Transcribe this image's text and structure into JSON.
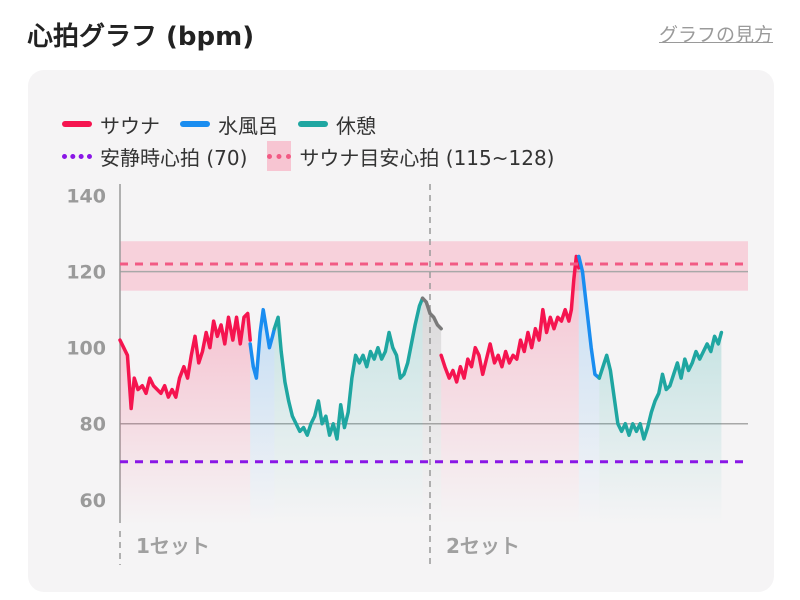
{
  "header": {
    "title": "心拍グラフ (bpm)",
    "help_link": "グラフの見方"
  },
  "legend": {
    "sauna": "サウナ",
    "cold_bath": "水風呂",
    "rest": "休憩",
    "resting_hr": "安静時心拍 (70)",
    "sauna_target": "サウナ目安心拍 (115~128)"
  },
  "colors": {
    "sauna": "#f5144f",
    "cold_bath": "#1a8df0",
    "rest": "#1fa6a1",
    "transition": "#7a7a7a",
    "resting_hr": "#8a16e6",
    "target_line": "#f25a84",
    "target_band": "#f7c5d2"
  },
  "chart_data": {
    "type": "line",
    "ylim": [
      56,
      142
    ],
    "y_ticks": [
      60,
      80,
      100,
      120,
      140
    ],
    "y_ticks_labels": [
      "60",
      "80",
      "100",
      "120",
      "140"
    ],
    "x_range": [
      0,
      100
    ],
    "set_labels": [
      "1セット",
      "2セット"
    ],
    "set_dividers": [
      0,
      50
    ],
    "reference_lines": {
      "resting_hr": 70,
      "target_low": 115,
      "target_high": 128,
      "target_line": 122
    },
    "gridlines": [
      80,
      120
    ],
    "series": [
      {
        "name": "サウナ",
        "segments": [
          [
            [
              0,
              102
            ],
            [
              0.6,
              100
            ],
            [
              1.2,
              98
            ],
            [
              1.8,
              84
            ],
            [
              2.3,
              92
            ],
            [
              2.9,
              89
            ],
            [
              3.6,
              90
            ],
            [
              4.2,
              88
            ],
            [
              4.8,
              92
            ],
            [
              5.4,
              90
            ],
            [
              6.0,
              89
            ],
            [
              6.6,
              88
            ],
            [
              7.2,
              90
            ],
            [
              7.8,
              87
            ],
            [
              8.4,
              89
            ],
            [
              9.0,
              87
            ],
            [
              9.6,
              92
            ],
            [
              10.3,
              95
            ],
            [
              10.9,
              92
            ],
            [
              11.5,
              98
            ],
            [
              12.1,
              103
            ],
            [
              12.7,
              96
            ],
            [
              13.3,
              99
            ],
            [
              13.9,
              104
            ],
            [
              14.5,
              100
            ],
            [
              15.1,
              107
            ],
            [
              15.7,
              103
            ],
            [
              16.3,
              106
            ],
            [
              16.9,
              101
            ],
            [
              17.5,
              108
            ],
            [
              18.2,
              102
            ],
            [
              18.8,
              108
            ],
            [
              19.4,
              101
            ],
            [
              20.0,
              108
            ],
            [
              20.6,
              109
            ],
            [
              21.0,
              102
            ]
          ],
          [
            [
              51.8,
              98
            ],
            [
              52.4,
              95
            ],
            [
              53.1,
              92
            ],
            [
              53.7,
              94
            ],
            [
              54.3,
              91
            ],
            [
              54.9,
              95
            ],
            [
              55.5,
              92
            ],
            [
              56.1,
              97
            ],
            [
              56.7,
              95
            ],
            [
              57.3,
              100
            ],
            [
              57.9,
              98
            ],
            [
              58.5,
              93
            ],
            [
              59.1,
              97
            ],
            [
              59.7,
              101
            ],
            [
              60.4,
              96
            ],
            [
              61.0,
              98
            ],
            [
              61.6,
              95
            ],
            [
              62.2,
              99
            ],
            [
              62.8,
              96
            ],
            [
              63.4,
              98
            ],
            [
              64.0,
              97
            ],
            [
              64.6,
              102
            ],
            [
              65.2,
              99
            ],
            [
              65.8,
              104
            ],
            [
              66.4,
              100
            ],
            [
              67.0,
              105
            ],
            [
              67.6,
              102
            ],
            [
              68.2,
              110
            ],
            [
              68.8,
              104
            ],
            [
              69.4,
              108
            ],
            [
              70.0,
              105
            ],
            [
              70.6,
              108
            ],
            [
              71.2,
              107
            ],
            [
              71.8,
              110
            ],
            [
              72.4,
              107
            ],
            [
              72.8,
              110
            ],
            [
              73.2,
              118
            ],
            [
              73.6,
              124
            ],
            [
              74.0,
              121
            ]
          ]
        ]
      },
      {
        "name": "水風呂",
        "segments": [
          [
            [
              21.0,
              101
            ],
            [
              21.5,
              95
            ],
            [
              22.0,
              92
            ],
            [
              22.6,
              104
            ],
            [
              23.1,
              110
            ],
            [
              23.6,
              105
            ],
            [
              24.1,
              100
            ],
            [
              24.6,
              103
            ],
            [
              24.9,
              105
            ]
          ],
          [
            [
              74.0,
              124
            ],
            [
              74.6,
              120
            ],
            [
              75.3,
              110
            ],
            [
              76.0,
              100
            ],
            [
              76.6,
              93
            ],
            [
              77.3,
              92
            ]
          ]
        ]
      },
      {
        "name": "休憩",
        "segments": [
          [
            [
              24.9,
              105
            ],
            [
              25.5,
              108
            ],
            [
              26.0,
              99
            ],
            [
              26.6,
              91
            ],
            [
              27.2,
              86
            ],
            [
              27.8,
              82
            ],
            [
              28.4,
              80
            ],
            [
              29.0,
              78
            ],
            [
              29.6,
              79
            ],
            [
              30.2,
              77
            ],
            [
              30.8,
              80
            ],
            [
              31.4,
              82
            ],
            [
              32.0,
              86
            ],
            [
              32.6,
              80
            ],
            [
              33.2,
              82
            ],
            [
              33.8,
              77
            ],
            [
              34.4,
              80
            ],
            [
              35.0,
              76
            ],
            [
              35.6,
              85
            ],
            [
              36.2,
              79
            ],
            [
              36.8,
              83
            ],
            [
              37.4,
              92
            ],
            [
              38.0,
              98
            ],
            [
              38.6,
              96
            ],
            [
              39.2,
              98
            ],
            [
              39.8,
              95
            ],
            [
              40.4,
              99
            ],
            [
              41.0,
              97
            ],
            [
              41.6,
              100
            ],
            [
              42.2,
              97
            ],
            [
              42.8,
              99
            ],
            [
              43.4,
              104
            ],
            [
              44.0,
              100
            ],
            [
              44.6,
              98
            ],
            [
              45.2,
              92
            ],
            [
              45.8,
              93
            ],
            [
              46.4,
              96
            ],
            [
              47.0,
              101
            ],
            [
              47.6,
              106
            ],
            [
              48.3,
              111
            ],
            [
              48.8,
              113
            ]
          ],
          [
            [
              77.3,
              92
            ],
            [
              77.9,
              95
            ],
            [
              78.5,
              98
            ],
            [
              79.1,
              94
            ],
            [
              79.7,
              87
            ],
            [
              80.3,
              80
            ],
            [
              80.9,
              78
            ],
            [
              81.5,
              80
            ],
            [
              82.1,
              77
            ],
            [
              82.7,
              80
            ],
            [
              83.3,
              78
            ],
            [
              83.9,
              80
            ],
            [
              84.5,
              76
            ],
            [
              85.1,
              79
            ],
            [
              85.7,
              83
            ],
            [
              86.3,
              86
            ],
            [
              86.9,
              88
            ],
            [
              87.5,
              93
            ],
            [
              88.1,
              89
            ],
            [
              88.7,
              90
            ],
            [
              89.3,
              93
            ],
            [
              89.9,
              96
            ],
            [
              90.5,
              92
            ],
            [
              91.1,
              97
            ],
            [
              91.7,
              94
            ],
            [
              92.3,
              96
            ],
            [
              92.9,
              99
            ],
            [
              93.5,
              97
            ],
            [
              94.1,
              99
            ],
            [
              94.7,
              101
            ],
            [
              95.3,
              99
            ],
            [
              95.9,
              103
            ],
            [
              96.5,
              101
            ],
            [
              97.0,
              104
            ]
          ]
        ]
      },
      {
        "name": "",
        "segments": [
          [
            [
              48.8,
              113
            ],
            [
              49.4,
              112
            ],
            [
              50.0,
              109
            ],
            [
              50.6,
              108
            ],
            [
              51.2,
              106
            ],
            [
              51.8,
              105
            ]
          ]
        ]
      }
    ]
  }
}
